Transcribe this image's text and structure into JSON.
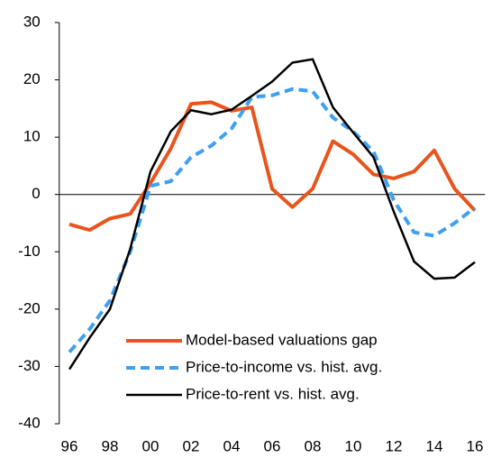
{
  "chart_data": {
    "type": "line",
    "categories": [
      "96",
      null,
      "98",
      null,
      "00",
      null,
      "02",
      null,
      "04",
      null,
      "06",
      null,
      "08",
      null,
      "10",
      null,
      "12",
      null,
      "14",
      null,
      "16"
    ],
    "series": [
      {
        "name": "Model-based valuations gap",
        "color": "#e8541c",
        "dash": "solid",
        "width": 4,
        "values": [
          -5.2,
          -6.2,
          -4.2,
          -3.4,
          2,
          8,
          15.8,
          16.1,
          14.6,
          15.2,
          1,
          -2.2,
          1,
          9.3,
          7,
          3.5,
          2.8,
          4,
          7.7,
          1,
          -2.8
        ]
      },
      {
        "name": "Price-to-income vs. hist. avg.",
        "color": "#3ea0f0",
        "dash": "dashed",
        "width": 4,
        "values": [
          -27.5,
          -23.5,
          -18.5,
          -10,
          1.5,
          2.3,
          6.5,
          8.5,
          11.5,
          17,
          17.3,
          18.4,
          18,
          13.4,
          11,
          7.5,
          -1,
          -6.6,
          -7.2,
          -5,
          -2.3
        ]
      },
      {
        "name": "Price-to-rent vs. hist. avg.",
        "color": "#000000",
        "dash": "solid",
        "width": 2.5,
        "values": [
          -30.5,
          -25,
          -20,
          -9.5,
          4,
          11,
          14.7,
          14,
          14.8,
          17.2,
          19.7,
          23,
          23.6,
          15.2,
          10.8,
          6.5,
          -3,
          -11.7,
          -14.7,
          -14.5,
          -11.8
        ]
      }
    ],
    "ylim": [
      -40,
      30
    ],
    "yticks": [
      -40,
      -30,
      -20,
      -10,
      0,
      10,
      20,
      30
    ],
    "legend": "lower-center"
  }
}
